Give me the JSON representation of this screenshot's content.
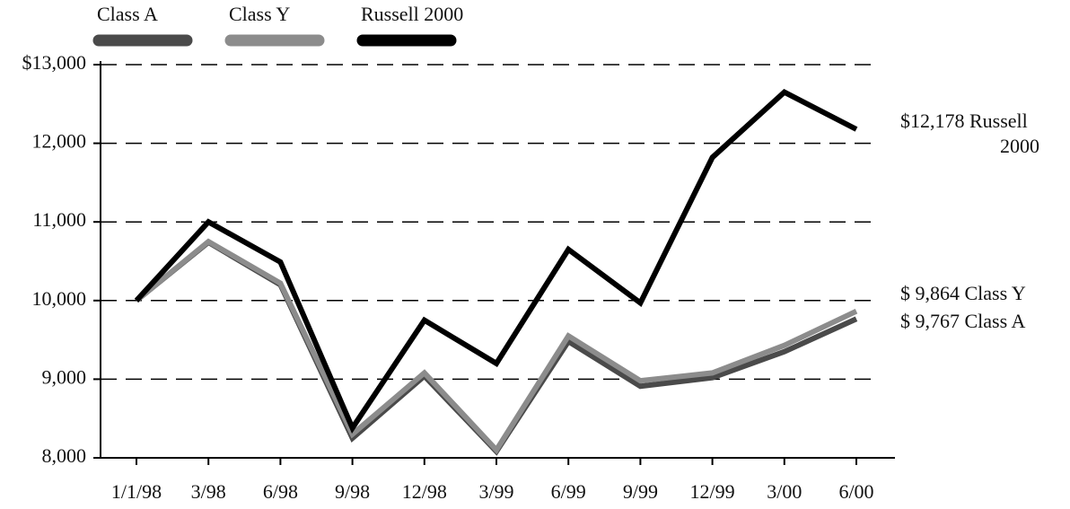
{
  "chart_data": {
    "type": "line",
    "categories": [
      "1/1/98",
      "3/98",
      "6/98",
      "9/98",
      "12/98",
      "3/99",
      "6/99",
      "9/99",
      "12/99",
      "3/00",
      "6/00"
    ],
    "series": [
      {
        "name": "Class A",
        "color": "#4a4a4a",
        "values": [
          10000,
          10740,
          10200,
          8250,
          9040,
          8080,
          9480,
          8910,
          9020,
          9350,
          9767
        ]
      },
      {
        "name": "Class Y",
        "color": "#8c8c8c",
        "values": [
          10000,
          10750,
          10220,
          8300,
          9080,
          8100,
          9550,
          8980,
          9080,
          9430,
          9864
        ]
      },
      {
        "name": "Russell 2000",
        "color": "#000000",
        "values": [
          10000,
          11000,
          10490,
          8380,
          9750,
          9200,
          10650,
          9970,
          11820,
          12650,
          12178
        ]
      }
    ],
    "ylim": [
      8000,
      13000
    ],
    "yticks": [
      {
        "value": 8000,
        "label": "8,000"
      },
      {
        "value": 9000,
        "label": "9,000"
      },
      {
        "value": 10000,
        "label": "10,000"
      },
      {
        "value": 11000,
        "label": "11,000"
      },
      {
        "value": 12000,
        "label": "12,000"
      },
      {
        "value": 13000,
        "label": "$13,000"
      }
    ],
    "grid": true,
    "legend": "top",
    "annotations": [
      [
        "$12,178 Russell",
        "2000"
      ],
      [
        "$ 9,864 Class Y"
      ],
      [
        "$ 9,767 Class A"
      ]
    ]
  }
}
